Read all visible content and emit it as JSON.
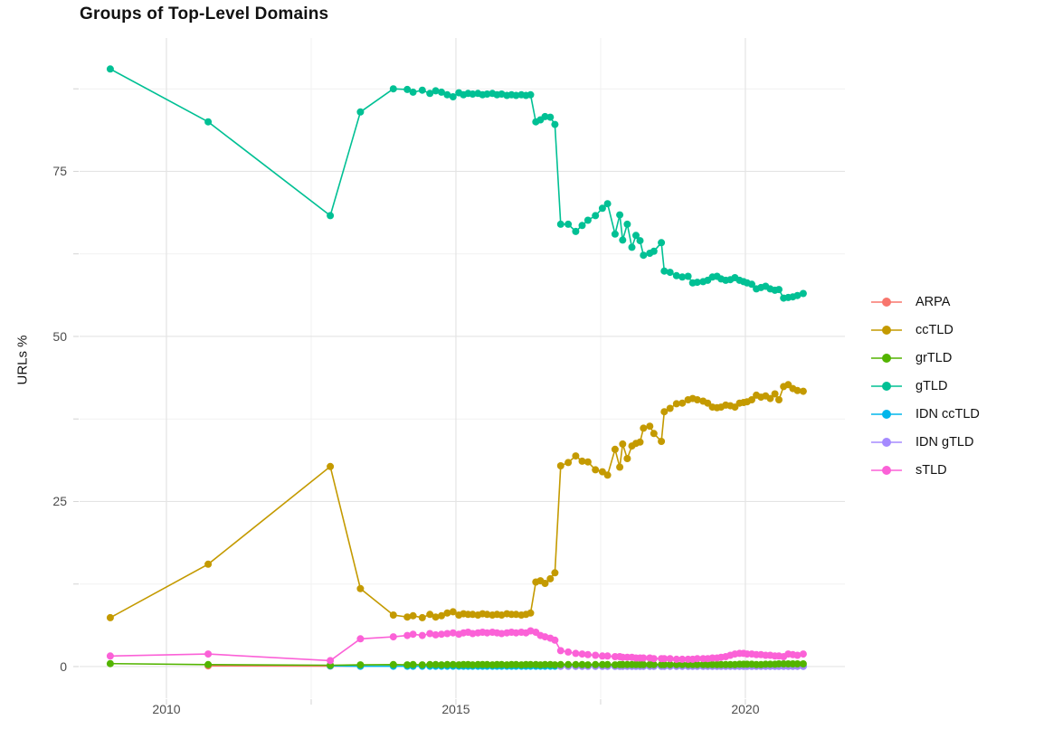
{
  "chart_data": {
    "type": "line",
    "title": "Groups of Top-Level Domains",
    "xlabel": "",
    "ylabel": "URLs %",
    "x_ticks": [
      2010,
      2015,
      2020
    ],
    "x_tick_labels": [
      "2010",
      "2015",
      "2020"
    ],
    "x_minor": [
      2012.5,
      2017.5
    ],
    "y_ticks": [
      75,
      50,
      25,
      0
    ],
    "y_tick_labels": [
      "75",
      "50",
      "25",
      "0"
    ],
    "y_minor": [
      87.5,
      62.5,
      37.5,
      12.5
    ],
    "xlim": [
      2008.5,
      2021.72
    ],
    "ylim": [
      -4.8,
      95.2
    ],
    "grid": true,
    "legend_position": "right",
    "colors": {
      "major_grid": "#e4e4e4",
      "minor_grid": "#f1f1f1",
      "axis_tick": "#d4d4d4"
    },
    "draw_order": [
      "ARPA",
      "IDN ccTLD",
      "IDN gTLD",
      "grTLD",
      "ccTLD",
      "gTLD",
      "sTLD"
    ],
    "series": [
      {
        "name": "ARPA",
        "color": "#F8766D",
        "x": [
          2010.72,
          2012.83,
          2013.35
        ],
        "y": [
          0.1,
          0.08,
          0.05
        ]
      },
      {
        "name": "ccTLD",
        "color": "#C49A00",
        "x": [
          2009.03,
          2010.72,
          2012.83,
          2013.35,
          2013.92,
          2014.16,
          2014.26,
          2014.42,
          2014.55,
          2014.65,
          2014.75,
          2014.85,
          2014.95,
          2015.05,
          2015.13,
          2015.21,
          2015.29,
          2015.38,
          2015.46,
          2015.54,
          2015.63,
          2015.71,
          2015.79,
          2015.88,
          2015.96,
          2016.04,
          2016.13,
          2016.21,
          2016.29,
          2016.38,
          2016.46,
          2016.54,
          2016.63,
          2016.71,
          2016.81,
          2016.94,
          2017.07,
          2017.18,
          2017.28,
          2017.41,
          2017.53,
          2017.62,
          2017.75,
          2017.83,
          2017.88,
          2017.96,
          2018.04,
          2018.11,
          2018.18,
          2018.24,
          2018.35,
          2018.42,
          2018.55,
          2018.6,
          2018.7,
          2018.81,
          2018.91,
          2019.01,
          2019.09,
          2019.17,
          2019.27,
          2019.35,
          2019.43,
          2019.51,
          2019.58,
          2019.66,
          2019.74,
          2019.82,
          2019.9,
          2019.97,
          2020.03,
          2020.11,
          2020.19,
          2020.27,
          2020.35,
          2020.43,
          2020.51,
          2020.58,
          2020.66,
          2020.74,
          2020.82,
          2020.9,
          2021.0
        ],
        "y": [
          7.4,
          15.5,
          30.3,
          11.8,
          7.8,
          7.5,
          7.7,
          7.4,
          7.9,
          7.5,
          7.7,
          8.1,
          8.3,
          7.8,
          8.0,
          7.9,
          7.9,
          7.8,
          8.0,
          7.9,
          7.8,
          7.9,
          7.8,
          8.0,
          7.9,
          7.9,
          7.8,
          7.9,
          8.1,
          12.8,
          13.0,
          12.6,
          13.3,
          14.2,
          30.4,
          30.9,
          31.9,
          31.1,
          31.0,
          29.8,
          29.5,
          29.0,
          32.9,
          30.2,
          33.7,
          31.5,
          33.4,
          33.8,
          34.0,
          36.1,
          36.4,
          35.3,
          34.1,
          38.6,
          39.1,
          39.8,
          39.9,
          40.4,
          40.6,
          40.4,
          40.2,
          39.9,
          39.3,
          39.2,
          39.3,
          39.6,
          39.5,
          39.3,
          39.9,
          40.0,
          40.1,
          40.4,
          41.1,
          40.8,
          41.0,
          40.6,
          41.3,
          40.4,
          42.4,
          42.7,
          42.1,
          41.8,
          41.7
        ]
      },
      {
        "name": "grTLD",
        "color": "#53B400",
        "x": [
          2009.03,
          2010.72,
          2012.83,
          2013.35,
          2013.92,
          2014.16,
          2014.26,
          2014.42,
          2014.55,
          2014.65,
          2014.75,
          2014.85,
          2014.95,
          2015.05,
          2015.13,
          2015.21,
          2015.29,
          2015.38,
          2015.46,
          2015.54,
          2015.63,
          2015.71,
          2015.79,
          2015.88,
          2015.96,
          2016.04,
          2016.13,
          2016.21,
          2016.29,
          2016.38,
          2016.46,
          2016.54,
          2016.63,
          2016.71,
          2016.81,
          2016.94,
          2017.07,
          2017.18,
          2017.28,
          2017.41,
          2017.53,
          2017.62,
          2017.75,
          2017.83,
          2017.88,
          2017.96,
          2018.04,
          2018.11,
          2018.18,
          2018.24,
          2018.35,
          2018.42,
          2018.55,
          2018.6,
          2018.7,
          2018.81,
          2018.91,
          2019.01,
          2019.09,
          2019.17,
          2019.27,
          2019.35,
          2019.43,
          2019.51,
          2019.58,
          2019.66,
          2019.74,
          2019.82,
          2019.9,
          2019.97,
          2020.03,
          2020.11,
          2020.19,
          2020.27,
          2020.35,
          2020.43,
          2020.51,
          2020.58,
          2020.66,
          2020.74,
          2020.82,
          2020.9,
          2021.0
        ],
        "y": [
          0.45,
          0.3,
          0.2,
          0.25,
          0.3,
          0.25,
          0.3,
          0.25,
          0.3,
          0.3,
          0.25,
          0.3,
          0.3,
          0.25,
          0.3,
          0.3,
          0.25,
          0.3,
          0.3,
          0.3,
          0.25,
          0.3,
          0.3,
          0.25,
          0.3,
          0.3,
          0.25,
          0.3,
          0.3,
          0.3,
          0.25,
          0.3,
          0.3,
          0.25,
          0.3,
          0.3,
          0.3,
          0.3,
          0.25,
          0.3,
          0.3,
          0.3,
          0.25,
          0.3,
          0.3,
          0.3,
          0.3,
          0.3,
          0.3,
          0.3,
          0.3,
          0.3,
          0.3,
          0.3,
          0.3,
          0.3,
          0.3,
          0.3,
          0.3,
          0.3,
          0.3,
          0.3,
          0.3,
          0.3,
          0.3,
          0.3,
          0.3,
          0.3,
          0.35,
          0.35,
          0.35,
          0.35,
          0.3,
          0.3,
          0.35,
          0.35,
          0.35,
          0.4,
          0.4,
          0.4,
          0.4,
          0.4,
          0.4
        ]
      },
      {
        "name": "gTLD",
        "color": "#00C094",
        "x": [
          2009.03,
          2010.72,
          2012.83,
          2013.35,
          2013.92,
          2014.16,
          2014.26,
          2014.42,
          2014.55,
          2014.65,
          2014.75,
          2014.85,
          2014.95,
          2015.05,
          2015.13,
          2015.21,
          2015.29,
          2015.38,
          2015.46,
          2015.54,
          2015.63,
          2015.71,
          2015.79,
          2015.88,
          2015.96,
          2016.04,
          2016.13,
          2016.21,
          2016.29,
          2016.38,
          2016.46,
          2016.54,
          2016.63,
          2016.71,
          2016.81,
          2016.94,
          2017.07,
          2017.18,
          2017.28,
          2017.41,
          2017.53,
          2017.62,
          2017.75,
          2017.83,
          2017.88,
          2017.96,
          2018.04,
          2018.11,
          2018.18,
          2018.24,
          2018.35,
          2018.42,
          2018.55,
          2018.6,
          2018.7,
          2018.81,
          2018.91,
          2019.01,
          2019.09,
          2019.17,
          2019.27,
          2019.35,
          2019.43,
          2019.51,
          2019.58,
          2019.66,
          2019.74,
          2019.82,
          2019.9,
          2019.97,
          2020.03,
          2020.11,
          2020.19,
          2020.27,
          2020.35,
          2020.43,
          2020.51,
          2020.58,
          2020.66,
          2020.74,
          2020.82,
          2020.9,
          2021.0
        ],
        "y": [
          90.5,
          82.5,
          68.3,
          84.0,
          87.5,
          87.4,
          87.0,
          87.3,
          86.8,
          87.2,
          87.0,
          86.6,
          86.3,
          86.9,
          86.6,
          86.8,
          86.7,
          86.8,
          86.6,
          86.7,
          86.8,
          86.6,
          86.7,
          86.5,
          86.6,
          86.5,
          86.6,
          86.5,
          86.6,
          82.5,
          82.8,
          83.3,
          83.2,
          82.1,
          67.0,
          67.0,
          65.9,
          66.8,
          67.6,
          68.3,
          69.4,
          70.1,
          65.5,
          68.4,
          64.6,
          67.0,
          63.5,
          65.3,
          64.5,
          62.3,
          62.6,
          62.9,
          64.2,
          59.9,
          59.7,
          59.2,
          59.0,
          59.1,
          58.1,
          58.2,
          58.3,
          58.5,
          59.0,
          59.1,
          58.7,
          58.5,
          58.6,
          58.9,
          58.5,
          58.3,
          58.1,
          57.9,
          57.2,
          57.4,
          57.6,
          57.2,
          57.0,
          57.1,
          55.8,
          55.9,
          56.0,
          56.2,
          56.5
        ]
      },
      {
        "name": "IDN ccTLD",
        "color": "#00B6EB",
        "x": [
          2012.83,
          2013.35,
          2013.92,
          2014.16,
          2014.26,
          2014.42,
          2014.55,
          2014.65,
          2014.75,
          2014.85,
          2014.95,
          2015.05,
          2015.13,
          2015.21,
          2015.29,
          2015.38,
          2015.46,
          2015.54,
          2015.63,
          2015.71,
          2015.79,
          2015.88,
          2015.96,
          2016.04,
          2016.13,
          2016.21,
          2016.29,
          2016.38,
          2016.46,
          2016.54,
          2016.63,
          2016.71,
          2016.81,
          2016.94,
          2017.07,
          2017.18,
          2017.28,
          2017.41,
          2017.53,
          2017.62,
          2017.75,
          2017.83,
          2017.88,
          2017.96,
          2018.04,
          2018.11,
          2018.18,
          2018.24,
          2018.35,
          2018.42,
          2018.55,
          2018.6,
          2018.7,
          2018.81,
          2018.91,
          2019.01,
          2019.09,
          2019.17,
          2019.27,
          2019.35,
          2019.43,
          2019.51,
          2019.58,
          2019.66,
          2019.74,
          2019.82,
          2019.9,
          2019.97,
          2020.03,
          2020.11,
          2020.19,
          2020.27,
          2020.35,
          2020.43,
          2020.51,
          2020.58,
          2020.66,
          2020.74,
          2020.82,
          2020.9,
          2021.0
        ],
        "y": [
          0.1,
          0.05,
          0.05,
          0.05,
          0.05,
          0.05,
          0.05,
          0.05,
          0.05,
          0.05,
          0.05,
          0.05,
          0.05,
          0.05,
          0.05,
          0.05,
          0.05,
          0.05,
          0.05,
          0.05,
          0.05,
          0.05,
          0.05,
          0.05,
          0.05,
          0.05,
          0.05,
          0.05,
          0.05,
          0.05,
          0.05,
          0.05,
          0.05,
          0.05,
          0.05,
          0.05,
          0.05,
          0.05,
          0.05,
          0.05,
          0.05,
          0.05,
          0.05,
          0.05,
          0.05,
          0.05,
          0.05,
          0.05,
          0.05,
          0.05,
          0.05,
          0.05,
          0.05,
          0.05,
          0.05,
          0.05,
          0.05,
          0.05,
          0.05,
          0.05,
          0.05,
          0.05,
          0.05,
          0.05,
          0.05,
          0.05,
          0.05,
          0.05,
          0.05,
          0.05,
          0.05,
          0.05,
          0.05,
          0.05,
          0.05,
          0.05,
          0.05,
          0.05,
          0.05,
          0.05,
          0.05
        ]
      },
      {
        "name": "IDN gTLD",
        "color": "#A58AFF",
        "x": [
          2016.81,
          2016.94,
          2017.07,
          2017.18,
          2017.28,
          2017.41,
          2017.53,
          2017.62,
          2017.75,
          2017.83,
          2017.88,
          2017.96,
          2018.04,
          2018.11,
          2018.18,
          2018.24,
          2018.35,
          2018.42,
          2018.55,
          2018.6,
          2018.7,
          2018.81,
          2018.91,
          2019.01,
          2019.09,
          2019.17,
          2019.27,
          2019.35,
          2019.43,
          2019.51,
          2019.58,
          2019.66,
          2019.74,
          2019.82,
          2019.9,
          2019.97,
          2020.03,
          2020.11,
          2020.19,
          2020.27,
          2020.35,
          2020.43,
          2020.51,
          2020.58,
          2020.66,
          2020.74,
          2020.82,
          2020.9,
          2021.0
        ],
        "y": [
          0.03,
          0.03,
          0.03,
          0.03,
          0.03,
          0.03,
          0.03,
          0.03,
          0.03,
          0.03,
          0.03,
          0.03,
          0.03,
          0.03,
          0.03,
          0.03,
          0.03,
          0.03,
          0.03,
          0.03,
          0.03,
          0.03,
          0.03,
          0.03,
          0.03,
          0.03,
          0.03,
          0.03,
          0.03,
          0.03,
          0.03,
          0.03,
          0.03,
          0.03,
          0.03,
          0.03,
          0.03,
          0.03,
          0.03,
          0.03,
          0.03,
          0.03,
          0.03,
          0.03,
          0.03,
          0.03,
          0.03,
          0.03,
          0.03
        ]
      },
      {
        "name": "sTLD",
        "color": "#FB61D7",
        "x": [
          2009.03,
          2010.72,
          2012.83,
          2013.35,
          2013.92,
          2014.16,
          2014.26,
          2014.42,
          2014.55,
          2014.65,
          2014.75,
          2014.85,
          2014.95,
          2015.05,
          2015.13,
          2015.21,
          2015.29,
          2015.38,
          2015.46,
          2015.54,
          2015.63,
          2015.71,
          2015.79,
          2015.88,
          2015.96,
          2016.04,
          2016.13,
          2016.21,
          2016.29,
          2016.38,
          2016.46,
          2016.54,
          2016.63,
          2016.71,
          2016.81,
          2016.94,
          2017.07,
          2017.18,
          2017.28,
          2017.41,
          2017.53,
          2017.62,
          2017.75,
          2017.83,
          2017.88,
          2017.96,
          2018.04,
          2018.11,
          2018.18,
          2018.24,
          2018.35,
          2018.42,
          2018.55,
          2018.6,
          2018.7,
          2018.81,
          2018.91,
          2019.01,
          2019.09,
          2019.17,
          2019.27,
          2019.35,
          2019.43,
          2019.51,
          2019.58,
          2019.66,
          2019.74,
          2019.82,
          2019.9,
          2019.97,
          2020.03,
          2020.11,
          2020.19,
          2020.27,
          2020.35,
          2020.43,
          2020.51,
          2020.58,
          2020.66,
          2020.74,
          2020.82,
          2020.9,
          2021.0
        ],
        "y": [
          1.6,
          1.9,
          0.9,
          4.2,
          4.5,
          4.7,
          4.9,
          4.7,
          5.0,
          4.8,
          4.9,
          5.0,
          5.1,
          4.9,
          5.1,
          5.2,
          5.0,
          5.1,
          5.2,
          5.1,
          5.2,
          5.1,
          5.0,
          5.1,
          5.2,
          5.1,
          5.2,
          5.1,
          5.4,
          5.2,
          4.7,
          4.5,
          4.3,
          4.0,
          2.4,
          2.2,
          2.0,
          1.9,
          1.8,
          1.7,
          1.6,
          1.6,
          1.5,
          1.5,
          1.4,
          1.4,
          1.4,
          1.3,
          1.3,
          1.3,
          1.3,
          1.2,
          1.2,
          1.2,
          1.2,
          1.1,
          1.1,
          1.1,
          1.1,
          1.2,
          1.2,
          1.2,
          1.3,
          1.3,
          1.4,
          1.5,
          1.7,
          1.9,
          2.0,
          2.0,
          1.9,
          1.9,
          1.8,
          1.8,
          1.7,
          1.7,
          1.6,
          1.6,
          1.5,
          1.9,
          1.8,
          1.7,
          1.9
        ]
      }
    ]
  }
}
